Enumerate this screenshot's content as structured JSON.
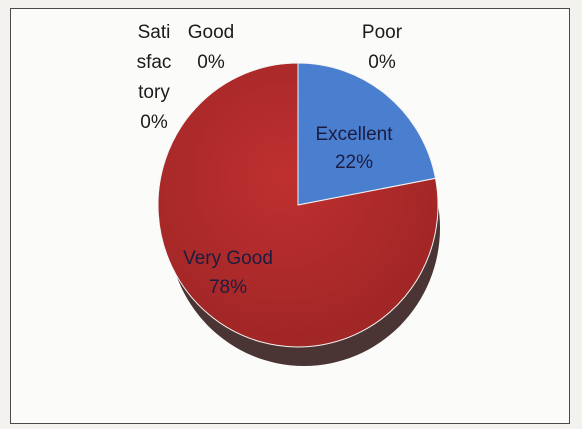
{
  "chart_data": {
    "type": "pie",
    "slices": [
      {
        "label": "Excellent",
        "value": 22,
        "display": "22%",
        "color": "#4a7fcf"
      },
      {
        "label": "Very Good",
        "value": 78,
        "display": "78%",
        "color": "#b12a2a"
      },
      {
        "label": "Satisfactory",
        "value": 0,
        "display": "0%",
        "color": "#8fb04a"
      },
      {
        "label": "Good",
        "value": 0,
        "display": "0%",
        "color": "#7a5aa0"
      },
      {
        "label": "Poor",
        "value": 0,
        "display": "0%",
        "color": "#3aa0b8"
      }
    ],
    "label_text": {
      "excellent_name": "Excellent",
      "excellent_pct": "22%",
      "very_good_name": "Very Good",
      "very_good_pct": "78%",
      "satisfactory_l1": "Sati",
      "satisfactory_l2": "sfac",
      "satisfactory_l3": "tory",
      "satisfactory_pct": "0%",
      "good_name": "Good",
      "good_pct": "0%",
      "poor_name": "Poor",
      "poor_pct": "0%"
    }
  }
}
